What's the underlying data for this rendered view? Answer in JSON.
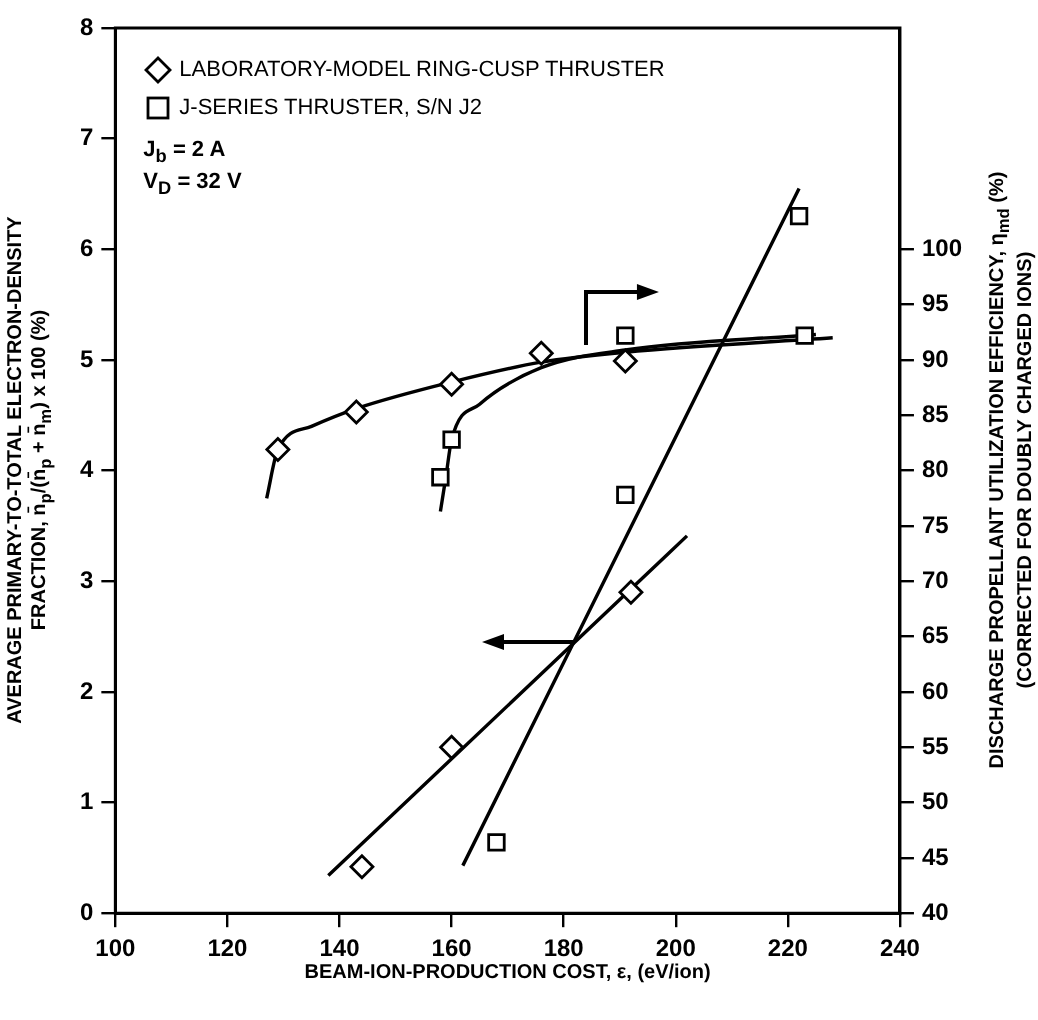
{
  "chart_data": {
    "type": "scatter",
    "xlabel": "BEAM-ION-PRODUCTION COST, ε, (eV/ion)",
    "ylabel": "AVERAGE PRIMARY-TO-TOTAL ELECTRON-DENSITY\nFRACTION, n̄$_{p}$/(n̄$_{p}$ + n̄$_{m}$) x 100 (%)",
    "y2label": "DISCHARGE PROPELLANT UTILIZATION EFFICIENCY, η$_{md}$ (%)\n(CORRECTED FOR DOUBLY CHARGED IONS)",
    "annotations": [
      "J$_{b}$  = 2 A",
      "V$_{D}$ = 32 V"
    ],
    "xlim": [
      100,
      240
    ],
    "xticks": [
      100,
      120,
      140,
      160,
      180,
      200,
      220,
      240
    ],
    "ylim": [
      0,
      8
    ],
    "yticks": [
      0,
      1,
      2,
      3,
      4,
      5,
      6,
      7,
      8
    ],
    "y2lim": [
      40,
      120
    ],
    "y2ticks": [
      40,
      45,
      50,
      55,
      60,
      65,
      70,
      75,
      80,
      85,
      90,
      95,
      100
    ],
    "grid": false,
    "legend": "top left",
    "series": [
      {
        "name": "LABORATORY-MODEL RING-CUSP THRUSTER",
        "type": "scatter",
        "marker": "diamond",
        "color": "#000000",
        "x": [
          144,
          160,
          192
        ],
        "values": [
          0.42,
          1.5,
          2.9
        ]
      },
      {
        "type": "scatter",
        "marker": "diamond",
        "axis": "y2",
        "color": "#000000",
        "x": [
          129,
          143,
          160,
          176,
          191
        ],
        "values": [
          81.9,
          85.3,
          87.8,
          90.6,
          89.9
        ]
      },
      {
        "name": "J-SERIES THRUSTER, S/N J2",
        "type": "scatter",
        "marker": "square",
        "color": "#000000",
        "x": [
          168,
          191,
          222
        ],
        "values": [
          0.64,
          3.78,
          6.3
        ]
      },
      {
        "type": "scatter",
        "marker": "square",
        "axis": "y2",
        "color": "#000000",
        "x": [
          158,
          160,
          191,
          223
        ],
        "values": [
          79.4,
          82.8,
          92.2,
          92.2
        ]
      },
      {
        "type": "line",
        "marker": "none",
        "color": "#000000",
        "x": [
          138,
          202
        ],
        "values": [
          0.34,
          3.41
        ]
      },
      {
        "type": "line",
        "marker": "none",
        "color": "#000000",
        "x": [
          162,
          222
        ],
        "values": [
          0.43,
          6.55
        ]
      },
      {
        "type": "line",
        "marker": "none",
        "axis": "y2",
        "color": "#000000",
        "x": [
          127,
          129,
          135,
          143,
          160,
          176,
          191,
          228
        ],
        "values": [
          77.5,
          81.9,
          84.0,
          85.6,
          88.0,
          89.8,
          90.7,
          92.0
        ]
      },
      {
        "type": "line",
        "marker": "none",
        "axis": "y2",
        "color": "#000000",
        "x": [
          158,
          159,
          160,
          165,
          176,
          191,
          225
        ],
        "values": [
          76.3,
          79.5,
          82.8,
          86.0,
          89.3,
          90.9,
          92.3
        ]
      }
    ]
  }
}
